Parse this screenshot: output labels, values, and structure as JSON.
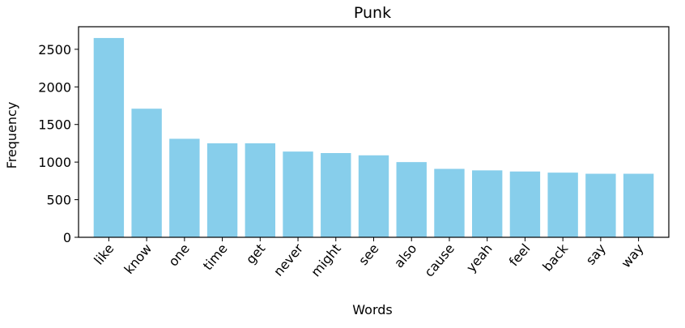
{
  "chart_data": {
    "type": "bar",
    "title": "Punk",
    "xlabel": "Words",
    "ylabel": "Frequency",
    "categories": [
      "like",
      "know",
      "one",
      "time",
      "get",
      "never",
      "might",
      "see",
      "also",
      "cause",
      "yeah",
      "feel",
      "back",
      "say",
      "way"
    ],
    "values": [
      2650,
      1710,
      1310,
      1250,
      1250,
      1140,
      1120,
      1090,
      1000,
      910,
      890,
      875,
      860,
      845,
      845
    ],
    "ylim": [
      0,
      2800
    ],
    "yticks": [
      0,
      500,
      1000,
      1500,
      2000,
      2500
    ],
    "bar_color": "#87ceeb",
    "grid": false,
    "x_tick_rotation": -50
  }
}
